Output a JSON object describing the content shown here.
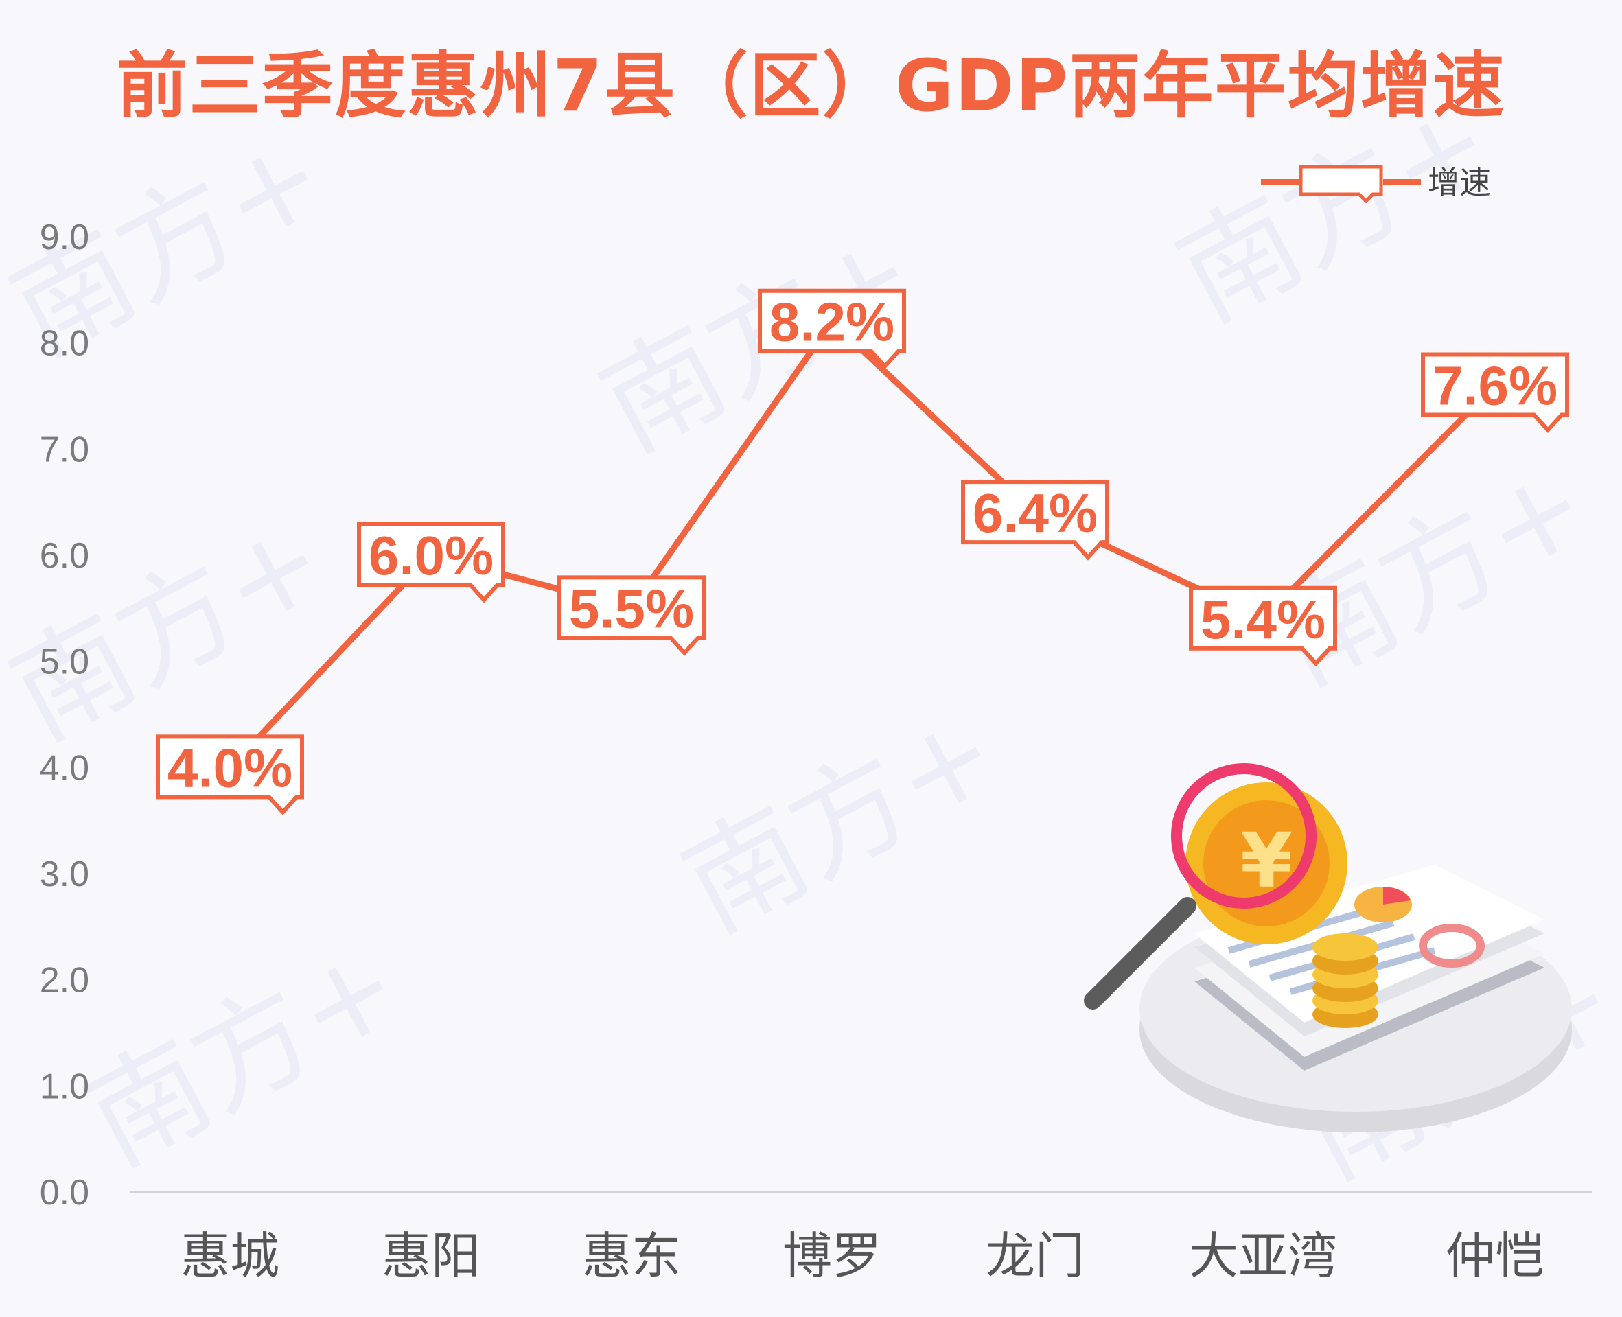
{
  "colors": {
    "accent": "#f2643f",
    "axis_text": "#7a7a7a",
    "category_text": "#555555",
    "background": "#f7f7fc",
    "axis_line": "#d2d2d2"
  },
  "watermark": "南方+",
  "chart_data": {
    "type": "line",
    "title": "前三季度惠州7县（区）GDP两年平均增速",
    "categories": [
      "惠城",
      "惠阳",
      "惠东",
      "博罗",
      "龙门",
      "大亚湾",
      "仲恺"
    ],
    "series": [
      {
        "name": "增速",
        "values": [
          4.0,
          6.0,
          5.5,
          8.2,
          6.4,
          5.4,
          7.6
        ],
        "labels": [
          "4.0%",
          "6.0%",
          "5.5%",
          "8.2%",
          "6.4%",
          "5.4%",
          "7.6%"
        ]
      }
    ],
    "ylim": [
      0,
      9
    ],
    "yticks": [
      "0.0",
      "1.0",
      "2.0",
      "3.0",
      "4.0",
      "5.0",
      "6.0",
      "7.0",
      "8.0",
      "9.0"
    ],
    "grid": false,
    "legend_position": "top-right"
  },
  "decoration": {
    "icons": [
      "magnifier-icon",
      "yuan-coin-icon",
      "document-stack-icon",
      "pie-chart-icon",
      "donut-chart-icon"
    ]
  }
}
